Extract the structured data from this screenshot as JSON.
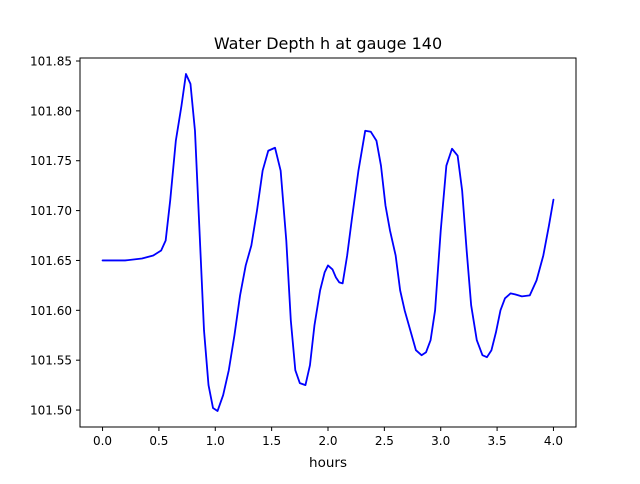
{
  "chart_data": {
    "type": "line",
    "title": "Water Depth h at gauge 140",
    "xlabel": "hours",
    "ylabel": "",
    "xlim": [
      -0.2,
      4.2
    ],
    "ylim": [
      101.483,
      101.853
    ],
    "xticks": [
      0.0,
      0.5,
      1.0,
      1.5,
      2.0,
      2.5,
      3.0,
      3.5,
      4.0
    ],
    "xtick_labels": [
      "0.0",
      "0.5",
      "1.0",
      "1.5",
      "2.0",
      "2.5",
      "3.0",
      "3.5",
      "4.0"
    ],
    "yticks": [
      101.5,
      101.55,
      101.6,
      101.65,
      101.7,
      101.75,
      101.8,
      101.85
    ],
    "ytick_labels": [
      "101.50",
      "101.55",
      "101.60",
      "101.65",
      "101.70",
      "101.75",
      "101.80",
      "101.85"
    ],
    "grid": false,
    "line_color": "#0000ff",
    "series": [
      {
        "x": [
          0.0,
          0.2,
          0.35,
          0.45,
          0.52,
          0.56,
          0.6,
          0.65,
          0.7,
          0.74,
          0.78,
          0.82,
          0.86,
          0.9,
          0.94,
          0.98,
          1.02,
          1.07,
          1.12,
          1.17,
          1.22,
          1.27,
          1.32,
          1.37,
          1.42,
          1.47,
          1.53,
          1.58,
          1.63,
          1.67,
          1.71,
          1.75,
          1.8,
          1.84,
          1.88,
          1.93,
          1.97,
          2.0,
          2.04,
          2.07,
          2.1,
          2.13,
          2.17,
          2.21,
          2.27,
          2.33,
          2.38,
          2.43,
          2.47,
          2.51,
          2.55,
          2.6,
          2.64,
          2.68,
          2.73,
          2.78,
          2.83,
          2.87,
          2.91,
          2.95,
          3.0,
          3.05,
          3.1,
          3.15,
          3.19,
          3.23,
          3.27,
          3.32,
          3.37,
          3.41,
          3.45,
          3.49,
          3.53,
          3.57,
          3.62,
          3.66,
          3.72,
          3.79,
          3.85,
          3.91,
          3.96,
          4.0
        ],
        "y": [
          101.65,
          101.65,
          101.652,
          101.655,
          101.66,
          101.67,
          101.71,
          101.77,
          101.805,
          101.837,
          101.827,
          101.78,
          101.68,
          101.58,
          101.525,
          101.502,
          101.499,
          101.515,
          101.54,
          101.575,
          101.615,
          101.645,
          101.665,
          101.7,
          101.74,
          101.76,
          101.763,
          101.74,
          101.67,
          101.59,
          101.54,
          101.527,
          101.525,
          101.545,
          101.585,
          101.62,
          101.638,
          101.645,
          101.641,
          101.633,
          101.628,
          101.627,
          101.655,
          101.69,
          101.74,
          101.78,
          101.779,
          101.77,
          101.745,
          101.705,
          101.68,
          101.655,
          101.62,
          101.6,
          101.58,
          101.56,
          101.555,
          101.558,
          101.57,
          101.6,
          101.68,
          101.745,
          101.762,
          101.755,
          101.72,
          101.66,
          101.605,
          101.57,
          101.555,
          101.553,
          101.56,
          101.578,
          101.6,
          101.612,
          101.617,
          101.616,
          101.614,
          101.615,
          101.63,
          101.655,
          101.685,
          101.711
        ]
      }
    ]
  }
}
